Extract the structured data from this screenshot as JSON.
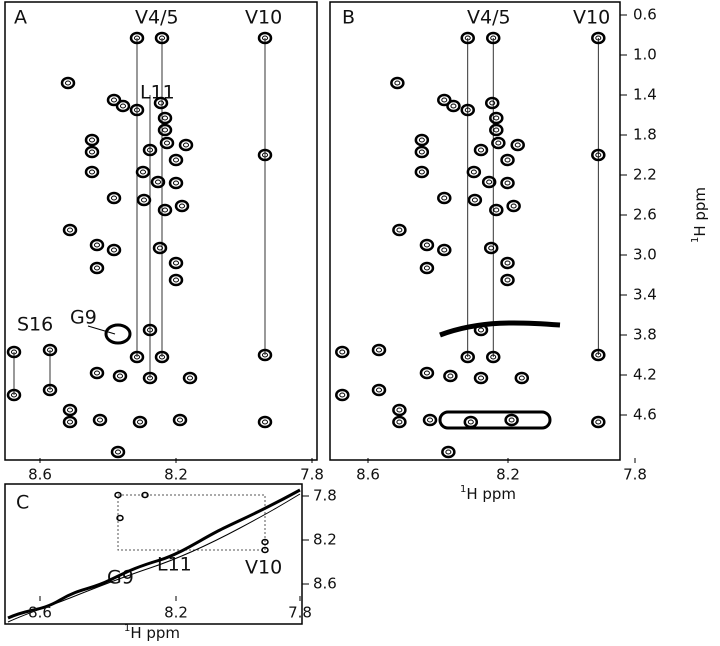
{
  "panels": [
    {
      "label": "A",
      "annotations": [
        "V4/5",
        "V10",
        "L11",
        "S16",
        "G9"
      ],
      "xticks": [
        "8.6",
        "8.2",
        "7.8"
      ]
    },
    {
      "label": "B",
      "annotations": [
        "V4/5",
        "V10"
      ],
      "xticks": [
        "8.6",
        "8.2",
        "7.8"
      ],
      "yticks": [
        "0.6",
        "1.0",
        "1.4",
        "1.8",
        "2.2",
        "2.6",
        "3.0",
        "3.4",
        "3.8",
        "4.2",
        "4.6"
      ]
    },
    {
      "label": "C",
      "annotations": [
        "G9",
        "L11",
        "V10"
      ],
      "xticks": [
        "8.6",
        "8.2",
        "7.8"
      ],
      "yticks": [
        "7.8",
        "8.2",
        "8.6"
      ]
    }
  ],
  "axis_label": {
    "sup": "1",
    "text": "H ppm"
  }
}
